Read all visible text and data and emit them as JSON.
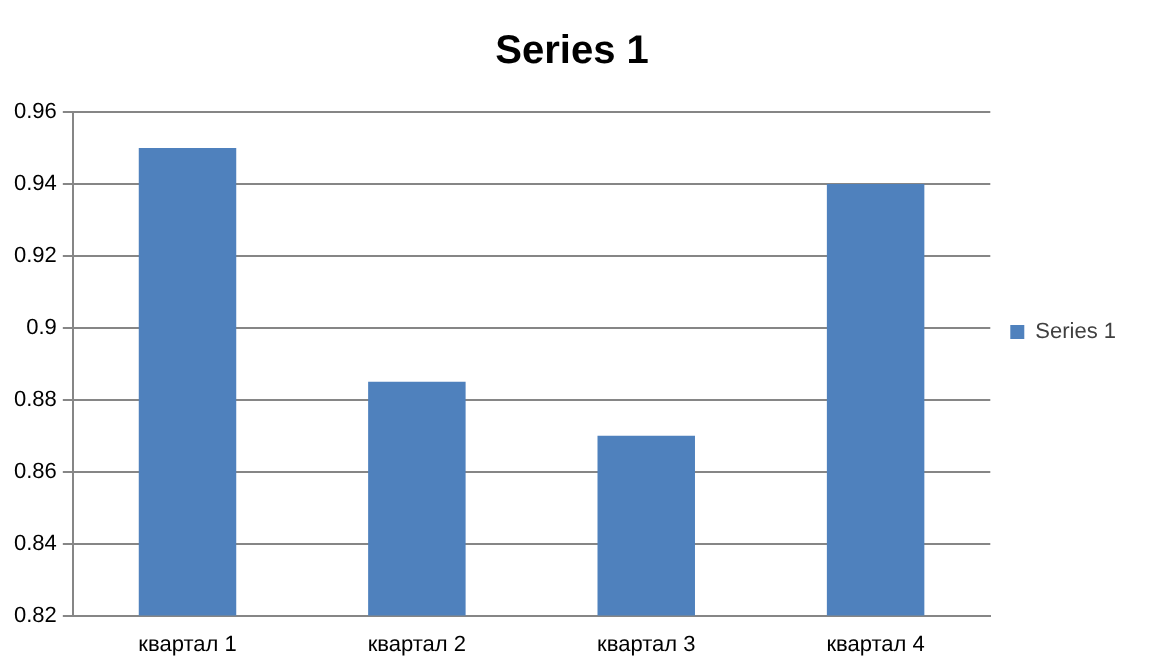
{
  "chart_data": {
    "type": "bar",
    "title": "Series 1",
    "categories": [
      "квартал 1",
      "квартал 2",
      "квартал 3",
      "квартал 4"
    ],
    "series": [
      {
        "name": "Series 1",
        "color": "#4f81bd",
        "values": [
          0.95,
          0.885,
          0.87,
          0.94
        ]
      }
    ],
    "ylim": [
      0.82,
      0.96
    ],
    "yticks": [
      0.82,
      0.84,
      0.86,
      0.88,
      0.9,
      0.92,
      0.94,
      0.96
    ],
    "grid": "y",
    "legend": "right"
  }
}
